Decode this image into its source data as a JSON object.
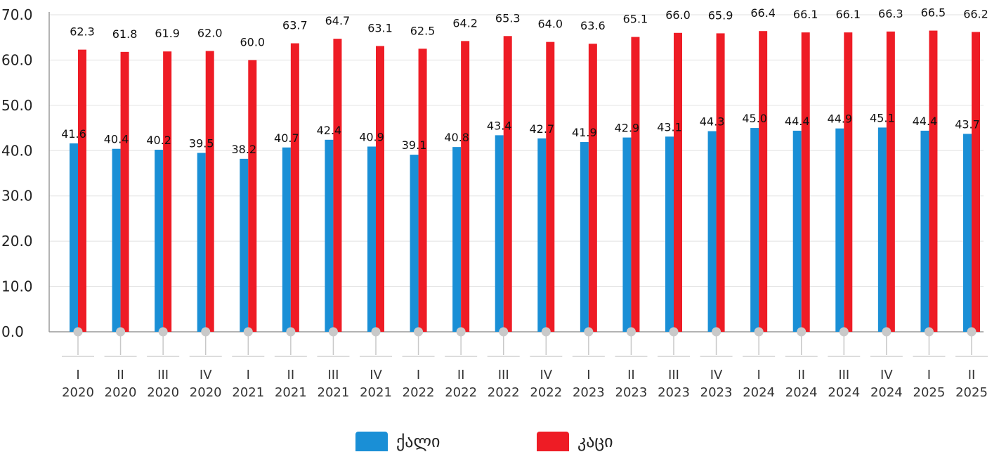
{
  "chart_data": {
    "type": "bar",
    "categories": [
      [
        "I",
        "2020"
      ],
      [
        "II",
        "2020"
      ],
      [
        "III",
        "2020"
      ],
      [
        "IV",
        "2020"
      ],
      [
        "I",
        "2021"
      ],
      [
        "II",
        "2021"
      ],
      [
        "III",
        "2021"
      ],
      [
        "IV",
        "2021"
      ],
      [
        "I",
        "2022"
      ],
      [
        "II",
        "2022"
      ],
      [
        "III",
        "2022"
      ],
      [
        "IV",
        "2022"
      ],
      [
        "I",
        "2023"
      ],
      [
        "II",
        "2023"
      ],
      [
        "III",
        "2023"
      ],
      [
        "IV",
        "2023"
      ],
      [
        "I",
        "2024"
      ],
      [
        "II",
        "2024"
      ],
      [
        "III",
        "2024"
      ],
      [
        "IV",
        "2024"
      ],
      [
        "I",
        "2025"
      ],
      [
        "II",
        "2025"
      ]
    ],
    "series": [
      {
        "name": "ქალი",
        "color": "#1a8fd6",
        "values": [
          41.6,
          40.4,
          40.2,
          39.5,
          38.2,
          40.7,
          42.4,
          40.9,
          39.1,
          40.8,
          43.4,
          42.7,
          41.9,
          42.9,
          43.1,
          44.3,
          45.0,
          44.4,
          44.9,
          45.1,
          44.4,
          43.7
        ]
      },
      {
        "name": "კაცი",
        "color": "#ee1c25",
        "values": [
          62.3,
          61.8,
          61.9,
          62.0,
          60.0,
          63.7,
          64.7,
          63.1,
          62.5,
          64.2,
          65.3,
          64.0,
          63.6,
          65.1,
          66.0,
          65.9,
          66.4,
          66.1,
          66.1,
          66.3,
          66.5,
          66.2
        ]
      }
    ],
    "yticks": [
      "0.0",
      "10.0",
      "20.0",
      "30.0",
      "40.0",
      "50.0",
      "60.0",
      "70.0"
    ],
    "ylim": [
      0,
      70
    ],
    "grid": true,
    "legend_position": "bottom-center"
  }
}
